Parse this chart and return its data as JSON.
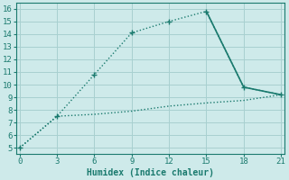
{
  "xlabel": "Humidex (Indice chaleur)",
  "bg_color": "#ceeaea",
  "line_color": "#1a7a6e",
  "grid_color": "#a8d0d0",
  "line1_x": [
    0,
    3,
    6,
    9,
    12,
    15,
    18,
    21
  ],
  "line1_y": [
    5,
    7.5,
    10.8,
    14.1,
    15.0,
    15.8,
    9.8,
    9.2
  ],
  "line2_x": [
    0,
    3,
    6,
    9,
    12,
    15,
    18,
    21
  ],
  "line2_y": [
    5,
    7.5,
    7.65,
    7.9,
    8.3,
    8.55,
    8.75,
    9.2
  ],
  "marker1_x": [
    3,
    6,
    9,
    12,
    15,
    18,
    21
  ],
  "marker1_y": [
    7.5,
    10.8,
    14.1,
    15.0,
    15.8,
    9.8,
    9.2
  ],
  "xlim": [
    -0.3,
    21.3
  ],
  "ylim": [
    4.5,
    16.5
  ],
  "xticks": [
    0,
    3,
    6,
    9,
    12,
    15,
    18,
    21
  ],
  "yticks": [
    5,
    6,
    7,
    8,
    9,
    10,
    11,
    12,
    13,
    14,
    15,
    16
  ]
}
